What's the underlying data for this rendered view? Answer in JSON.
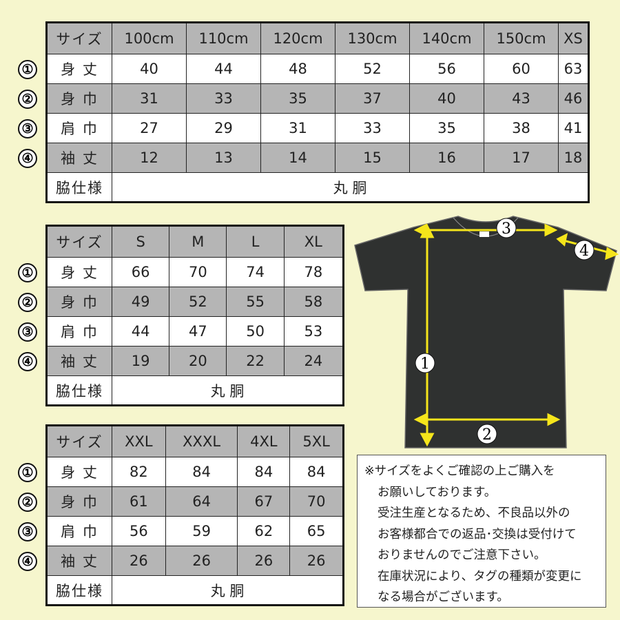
{
  "row_markers": [
    "①",
    "②",
    "③",
    "④"
  ],
  "row_labels": {
    "header": "サイズ",
    "length": "身 丈",
    "width": "身 巾",
    "shoulder": "肩 巾",
    "sleeve": "袖 丈",
    "side": "脇仕様"
  },
  "tables": [
    {
      "sizes": [
        "100cm",
        "110cm",
        "120cm",
        "130cm",
        "140cm",
        "150cm",
        "XS"
      ],
      "length": [
        "40",
        "44",
        "48",
        "52",
        "56",
        "60",
        "63"
      ],
      "width": [
        "31",
        "33",
        "35",
        "37",
        "40",
        "43",
        "46"
      ],
      "shoulder": [
        "27",
        "29",
        "31",
        "33",
        "35",
        "38",
        "41"
      ],
      "sleeve": [
        "12",
        "13",
        "14",
        "15",
        "16",
        "17",
        "18"
      ],
      "side": "丸 胴"
    },
    {
      "sizes": [
        "S",
        "M",
        "L",
        "XL"
      ],
      "length": [
        "66",
        "70",
        "74",
        "78"
      ],
      "width": [
        "49",
        "52",
        "55",
        "58"
      ],
      "shoulder": [
        "44",
        "47",
        "50",
        "53"
      ],
      "sleeve": [
        "19",
        "20",
        "22",
        "24"
      ],
      "side": "丸 胴"
    },
    {
      "sizes": [
        "XXL",
        "XXXL",
        "4XL",
        "5XL"
      ],
      "length": [
        "82",
        "84",
        "84",
        "84"
      ],
      "width": [
        "61",
        "64",
        "67",
        "70"
      ],
      "shoulder": [
        "56",
        "59",
        "62",
        "65"
      ],
      "sleeve": [
        "26",
        "26",
        "26",
        "26"
      ],
      "side": "丸 胴"
    }
  ],
  "diagram_labels": [
    "1",
    "2",
    "3",
    "4"
  ],
  "notes": [
    "※サイズをよくご確認の上ご購入を",
    "お願いしております。",
    "受注生産となるため、不良品以外の",
    "お客様都合での返品･交換は受付けて",
    "おりませんのでご注意下さい。",
    "在庫状況により、タグの種類が変更に",
    "なる場合がございます。"
  ],
  "colors": {
    "background": "#f6f6cd",
    "gray_row": "#b5b5b5",
    "shirt": "#2f3130",
    "arrow": "#f5e51b"
  }
}
